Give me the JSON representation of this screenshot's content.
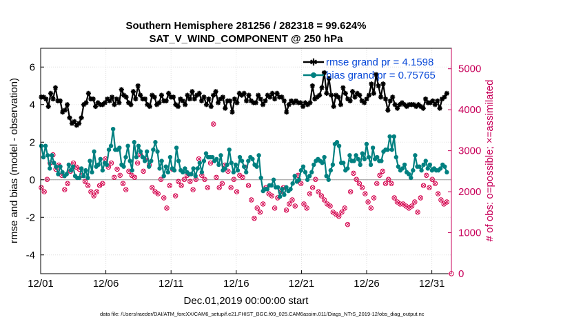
{
  "chart_data": {
    "type": "line",
    "title_line1": "Southern Hemisphere 281256 / 282318 = 99.624%",
    "title_line2": "SAT_V_WIND_COMPONENT @ 250 hPa",
    "xlabel": "Dec.01,2019 00:00:00 start",
    "ylabel": "rmse and bias (model - observation)",
    "ylabel_right": "# of obs: o=possible; ×=assimilated",
    "footnote": "data file: /Users/raeder/DAI/ATM_forcXX/CAM6_setup/f.e21.FHIST_BGC.f09_025.CAM6assim.011/Diags_NTrS_2019-12/obs_diag_output.nc",
    "x_range": [
      0,
      31.5
    ],
    "ylim": [
      -5,
      7
    ],
    "ylim_right": [
      0,
      5500
    ],
    "x_ticks": [
      {
        "x": 0,
        "label": "12/01"
      },
      {
        "x": 5,
        "label": "12/06"
      },
      {
        "x": 10,
        "label": "12/11"
      },
      {
        "x": 15,
        "label": "12/16"
      },
      {
        "x": 20,
        "label": "12/21"
      },
      {
        "x": 25,
        "label": "12/26"
      },
      {
        "x": 30,
        "label": "12/31"
      }
    ],
    "y_ticks": [
      -4,
      -2,
      0,
      2,
      4,
      6
    ],
    "y_ticks_right": [
      0,
      1000,
      2000,
      3000,
      4000,
      5000
    ],
    "grid": true,
    "legend_position": "top-right",
    "series": [
      {
        "name": "rmse grand pr = 4.1598",
        "color": "#000000",
        "marker": "star",
        "values": [
          4.4,
          4.4,
          4.3,
          3.9,
          4.6,
          4.3,
          4.9,
          4.2,
          4.2,
          3.6,
          3.7,
          4.0,
          3.3,
          3.0,
          3.1,
          2.9,
          3.0,
          3.3,
          4.0,
          4.1,
          4.6,
          4.3,
          4.3,
          3.9,
          4.1,
          4.0,
          4.0,
          4.1,
          4.3,
          4.2,
          4.4,
          4.0,
          4.3,
          4.1,
          4.8,
          4.5,
          4.4,
          4.1,
          4.0,
          4.7,
          4.3,
          5.0,
          4.5,
          4.3,
          4.3,
          4.0,
          3.9,
          4.5,
          4.4,
          4.0,
          4.1,
          4.5,
          4.2,
          4.2,
          4.6,
          4.4,
          4.4,
          4.0,
          3.9,
          4.3,
          4.2,
          4.0,
          4.5,
          4.3,
          4.7,
          4.3,
          4.5,
          4.6,
          4.2,
          4.4,
          4.0,
          4.3,
          3.9,
          4.5,
          4.7,
          4.1,
          4.3,
          4.4,
          3.8,
          4.2,
          4.2,
          3.6,
          4.3,
          4.1,
          4.6,
          4.5,
          4.6,
          4.2,
          4.5,
          4.2,
          4.1,
          4.1,
          4.5,
          4.3,
          4.0,
          4.2,
          4.5,
          4.4,
          4.6,
          4.3,
          4.6,
          4.4,
          4.4,
          4.2,
          3.6,
          4.0,
          4.2,
          4.1,
          4.2,
          4.1,
          4.1,
          3.9,
          4.1,
          4.0,
          4.1,
          5.0,
          4.3,
          4.4,
          4.5,
          4.9,
          5.7,
          4.6,
          5.4,
          4.5,
          3.9,
          4.5,
          4.4,
          4.0,
          4.9,
          4.6,
          4.3,
          4.2,
          4.7,
          4.4,
          4.6,
          4.5,
          4.2,
          4.1,
          4.3,
          4.5,
          5.1,
          4.6,
          5.6,
          5.0,
          4.4,
          5.1,
          4.3,
          3.7,
          4.2,
          4.4,
          4.0,
          3.8,
          4.0,
          4.1,
          4.0,
          3.9,
          4.0,
          4.0,
          4.0,
          3.9,
          4.0,
          3.9,
          3.8,
          4.3,
          4.1,
          4.1,
          4.2,
          4.0,
          4.2,
          3.8,
          4.3,
          4.4,
          4.6
        ]
      },
      {
        "name": "bias grand pr = 0.75765",
        "color": "#008080",
        "marker": "circle",
        "values": [
          1.8,
          1.2,
          1.8,
          1.3,
          0.6,
          1.3,
          0.9,
          0.7,
          0.3,
          0.7,
          0.4,
          0.2,
          0.3,
          0.8,
          0.5,
          0.7,
          0.2,
          0.1,
          0.1,
          0.6,
          0.2,
          0.5,
          0.1,
          1.0,
          0.4,
          1.5,
          0.7,
          0.8,
          1.1,
          0.5,
          0.9,
          0.8,
          1.6,
          1.8,
          2.7,
          1.6,
          1.6,
          1.7,
          0.8,
          0.7,
          1.2,
          1.8,
          1.0,
          0.5,
          2.0,
          1.2,
          1.8,
          1.5,
          1.2,
          1.0,
          1.5,
          0.7,
          1.0,
          1.6,
          2.0,
          1.5,
          0.6,
          1.0,
          0.2,
          0.7,
          0.4,
          1.2,
          0.6,
          0.5,
          1.7,
          1.0,
          0.5,
          0.4,
          0.6,
          0.4,
          0.3,
          0.3,
          0.6,
          0.2,
          0.6,
          0.9,
          0.4,
          1.0,
          1.4,
          1.2,
          1.2,
          1.2,
          1.0,
          1.1,
          0.8,
          1.3,
          0.5,
          0.6,
          0.8,
          1.6,
          0.9,
          0.4,
          0.8,
          0.5,
          1.2,
          1.0,
          0.7,
          0.4,
          1.0,
          1.2,
          1.1,
          0.8,
          0.7,
          1.3,
          0.1,
          -0.6,
          -0.5,
          -0.5,
          -0.3,
          -0.3,
          0.0,
          -0.4,
          -0.4,
          -0.9,
          -0.5,
          -0.8,
          -0.4,
          -0.6,
          -0.5,
          -0.2,
          0.2,
          -0.1,
          0.0,
          0.5,
          0.7,
          0.4,
          0.0,
          0.2,
          0.4,
          0.8,
          1.0,
          1.1,
          1.0,
          0.9,
          1.2,
          0.2,
          0.0,
          0.5,
          0.8,
          1.9,
          2.0,
          1.8,
          0.9,
          0.9,
          0.5,
          0.6,
          1.3,
          1.0,
          1.0,
          1.3,
          1.1,
          0.8,
          1.4,
          1.1,
          1.9,
          1.2,
          0.8,
          1.7,
          1.1,
          1.2,
          1.0,
          1.0,
          1.5,
          1.6,
          1.6,
          2.3,
          1.6,
          2.3,
          1.2,
          0.7,
          0.5,
          0.6,
          0.8,
          0.4,
          0.3,
          0.1,
          0.5,
          1.3,
          0.7,
          0.7,
          0.5,
          0.8,
          1.0,
          0.6,
          0.8,
          0.5,
          0.6,
          0.5,
          0.5,
          0.6,
          0.8,
          0.7,
          0.4
        ]
      }
    ],
    "obs_assimilated": {
      "name": "assimilated",
      "color": "#d4004c",
      "marker": "x",
      "values": [
        2100,
        2000,
        2300,
        2700,
        2900,
        2550,
        2650,
        2400,
        2050,
        2200,
        2500,
        2700,
        2600,
        2550,
        2400,
        2250,
        2150,
        2000,
        1900,
        2000,
        2150,
        2200,
        2800,
        2600,
        2700,
        2350,
        2550,
        2400,
        2200,
        2050,
        2500,
        2400,
        2350,
        2700,
        2900,
        2500,
        2800,
        2650,
        2100,
        2000,
        1950,
        2300,
        1850,
        1600,
        2150,
        2550,
        1900,
        2250,
        2150,
        2300,
        2400,
        2250,
        2050,
        2300,
        2800,
        2400,
        2300,
        2100,
        2700,
        3650,
        2350,
        2100,
        2200,
        2650,
        2500,
        2100,
        2300,
        2000,
        2400,
        2350,
        2600,
        2150,
        1800,
        1350,
        1600,
        1500,
        1700,
        2100,
        1950,
        1900,
        1600,
        1850,
        2000,
        2100,
        1550,
        1700,
        1800,
        1650,
        2400,
        2200,
        1700,
        1600,
        1950,
        2100,
        2300,
        2000,
        1900,
        1800,
        1700,
        1650,
        1500,
        1450,
        1400,
        1500,
        1600,
        1200,
        2000,
        2450,
        2300,
        2200,
        2100,
        1950,
        1750,
        1600,
        1850,
        2200,
        2400,
        2500,
        2200,
        2300,
        2200,
        1850,
        1750,
        1700,
        1700,
        1650,
        1600,
        1650,
        1750,
        1500,
        1850,
        2150,
        2400,
        2100,
        2300,
        2200,
        1950,
        1800,
        1700,
        1750
      ]
    }
  }
}
